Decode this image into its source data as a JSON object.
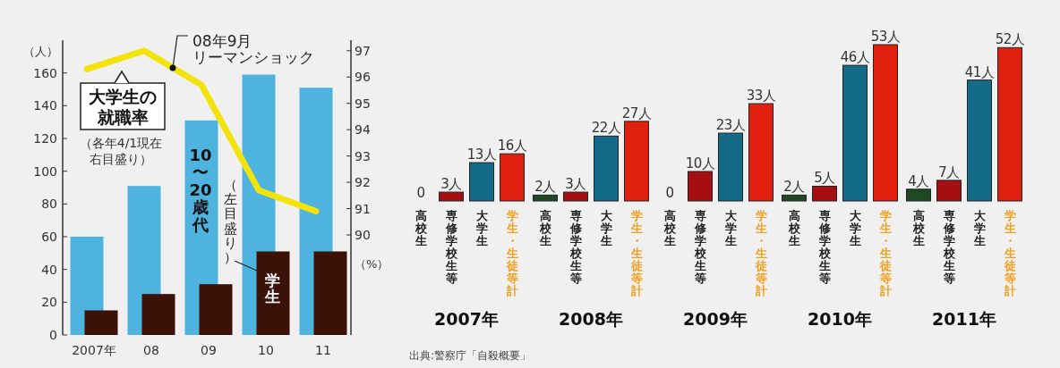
{
  "chart_data": [
    {
      "type": "bar",
      "categories": [
        "2007年",
        "08",
        "09",
        "10",
        "11"
      ],
      "ylabel": "（人）",
      "y2label": "（%）",
      "ylim": [
        0,
        180
      ],
      "yticks": [
        0,
        20,
        40,
        60,
        80,
        100,
        120,
        140,
        160
      ],
      "y2lim": [
        86.2,
        97.4
      ],
      "y2ticks": [
        90,
        91,
        92,
        93,
        94,
        95,
        96,
        97
      ],
      "series": [
        {
          "name": "10〜20歳代",
          "color": "#4fb3e0",
          "values": [
            60,
            91,
            131,
            159,
            151
          ]
        },
        {
          "name": "学生",
          "color": "#3a1208",
          "values": [
            15,
            25,
            31,
            51,
            51
          ]
        },
        {
          "name": "大学生の就職率",
          "type": "line",
          "axis": "y2",
          "color": "#f2e30c",
          "values": [
            96.3,
            97.0,
            95.7,
            91.7,
            90.9
          ]
        }
      ],
      "annotations": [
        "08年9月リーマンショック",
        "（各年4/1現在右目盛り）",
        "（左目盛り）"
      ]
    },
    {
      "type": "bar",
      "xlabel": "2007年",
      "categories": [
        "高校生",
        "専修学校生等",
        "大学生",
        "学生・生徒等計"
      ],
      "values": [
        0,
        3,
        13,
        16
      ],
      "colors": [
        "#1d4a22",
        "#a50f12",
        "#146b87",
        "#e2200f"
      ],
      "value_labels": [
        "0",
        "3人",
        "13人",
        "16人"
      ],
      "annotations": [
        "出典:警察庁「自殺概要」"
      ]
    },
    {
      "type": "bar",
      "xlabel": "2008年",
      "categories": [
        "高校生",
        "専修学校生等",
        "大学生",
        "学生・生徒等計"
      ],
      "values": [
        2,
        3,
        22,
        27
      ],
      "colors": [
        "#1d4a22",
        "#a50f12",
        "#146b87",
        "#e2200f"
      ],
      "value_labels": [
        "2人",
        "3人",
        "22人",
        "27人"
      ]
    },
    {
      "type": "bar",
      "xlabel": "2009年",
      "categories": [
        "高校生",
        "専修学校生等",
        "大学生",
        "学生・生徒等計"
      ],
      "values": [
        0,
        10,
        23,
        33
      ],
      "colors": [
        "#1d4a22",
        "#a50f12",
        "#146b87",
        "#e2200f"
      ],
      "value_labels": [
        "0",
        "10人",
        "23人",
        "33人"
      ]
    },
    {
      "type": "bar",
      "xlabel": "2010年",
      "categories": [
        "高校生",
        "専修学校生等",
        "大学生",
        "学生・生徒等計"
      ],
      "values": [
        2,
        5,
        46,
        53
      ],
      "colors": [
        "#1d4a22",
        "#a50f12",
        "#146b87",
        "#e2200f"
      ],
      "value_labels": [
        "2人",
        "5人",
        "46人",
        "53人"
      ]
    },
    {
      "type": "bar",
      "xlabel": "2011年",
      "categories": [
        "高校生",
        "専修学校生等",
        "大学生",
        "学生・生徒等計"
      ],
      "values": [
        4,
        7,
        41,
        52
      ],
      "colors": [
        "#1d4a22",
        "#a50f12",
        "#146b87",
        "#e2200f"
      ],
      "value_labels": [
        "4人",
        "7人",
        "41人",
        "52人"
      ]
    }
  ]
}
